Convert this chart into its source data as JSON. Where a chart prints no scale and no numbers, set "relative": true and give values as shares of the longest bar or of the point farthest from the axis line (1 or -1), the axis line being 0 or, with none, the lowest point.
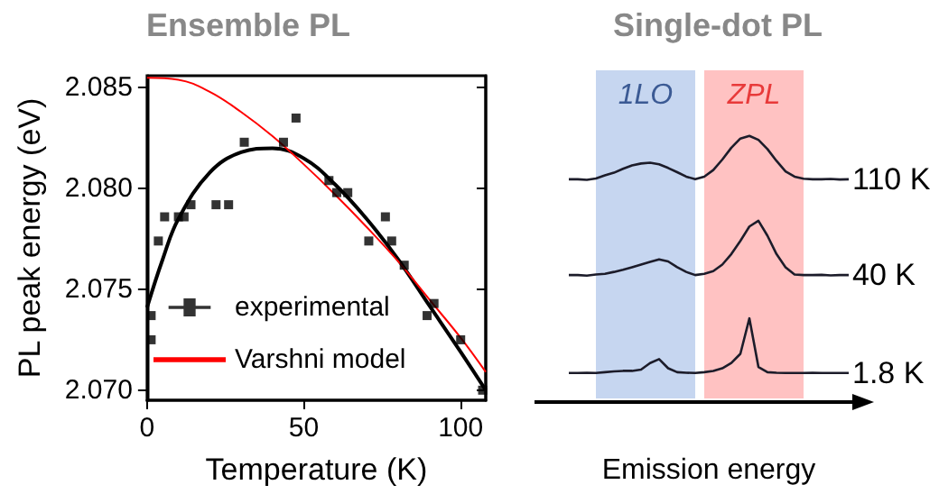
{
  "chart_data": [
    {
      "type": "scatter",
      "title": "Ensemble PL",
      "xlabel": "Temperature (K)",
      "ylabel": "PL peak energy (eV)",
      "xlim": [
        0,
        108
      ],
      "xticks": [
        0,
        50,
        100
      ],
      "ylim": [
        2.0695,
        2.0856
      ],
      "yticks": [
        {
          "value": 2.07,
          "label": "2.070"
        },
        {
          "value": 2.075,
          "label": "2.075"
        },
        {
          "value": 2.08,
          "label": "2.080"
        },
        {
          "value": 2.085,
          "label": "2.085"
        }
      ],
      "legend": "bottom left",
      "series": [
        {
          "name": "experimental",
          "type": "scatter",
          "marker": "square",
          "color": "#000000",
          "x": [
            1.3,
            1.3,
            3.6,
            5.6,
            10,
            11.8,
            14,
            22,
            26,
            31,
            43.5,
            47.5,
            58,
            60.5,
            64,
            70.7,
            76,
            78,
            82,
            89.3,
            91.5,
            100,
            107
          ],
          "values": [
            2.0725,
            2.0737,
            2.0774,
            2.0786,
            2.0786,
            2.0786,
            2.0792,
            2.0792,
            2.0792,
            2.0823,
            2.0823,
            2.0835,
            2.0804,
            2.0798,
            2.0798,
            2.0774,
            2.0786,
            2.0774,
            2.0762,
            2.0737,
            2.0743,
            2.0725,
            2.07
          ]
        },
        {
          "type": "line",
          "marker": "none",
          "color": "#000000",
          "x": [
            0,
            5,
            10,
            20,
            30,
            40,
            50,
            60,
            70,
            80,
            90,
            100,
            108
          ],
          "values": [
            2.0741,
            2.0765,
            2.0785,
            2.0808,
            2.0818,
            2.082,
            2.0815,
            2.0802,
            2.0785,
            2.0765,
            2.0742,
            2.0719,
            2.07
          ]
        },
        {
          "name": "Varshni model",
          "type": "line",
          "marker": "none",
          "color": "#ff0000",
          "x": [
            0,
            10,
            20,
            30,
            40,
            50,
            60,
            70,
            80,
            90,
            100,
            108
          ],
          "values": [
            2.0855,
            2.0854,
            2.0848,
            2.0838,
            2.0826,
            2.0812,
            2.0797,
            2.0781,
            2.0764,
            2.0745,
            2.0726,
            2.0709
          ]
        }
      ]
    },
    {
      "type": "line",
      "title": "Single-dot PL",
      "xlabel": "Emission energy",
      "relative": true,
      "marker": "none",
      "categories": [
        null,
        null,
        null,
        null,
        null,
        null,
        null,
        null,
        null,
        null,
        null,
        null,
        null,
        null,
        null,
        null,
        null,
        null,
        null,
        null,
        null,
        null,
        null,
        null,
        null,
        null,
        null,
        null,
        null,
        null,
        null,
        null
      ],
      "annotations": [
        "1LO",
        "ZPL"
      ],
      "series": [
        {
          "name": "110 K",
          "color": "#1c1c2a",
          "values": [
            0.835,
            0.835,
            0.833,
            0.838,
            0.85,
            0.86,
            0.875,
            0.888,
            0.895,
            0.898,
            0.892,
            0.878,
            0.862,
            0.845,
            0.835,
            0.845,
            0.87,
            0.91,
            0.955,
            0.99,
            1.0,
            0.985,
            0.95,
            0.905,
            0.865,
            0.845,
            0.837,
            0.835,
            0.835,
            0.836,
            0.834,
            0.835
          ]
        },
        {
          "name": "40 K",
          "color": "#1c1c2a",
          "values": [
            0.47,
            0.47,
            0.468,
            0.472,
            0.475,
            0.482,
            0.49,
            0.5,
            0.51,
            0.52,
            0.53,
            0.522,
            0.5,
            0.482,
            0.47,
            0.475,
            0.485,
            0.51,
            0.55,
            0.6,
            0.655,
            0.677,
            0.62,
            0.55,
            0.5,
            0.472,
            0.47,
            0.47,
            0.471,
            0.469,
            0.47,
            0.47
          ]
        },
        {
          "name": "1.8 K",
          "color": "#1c1c2a",
          "values": [
            0.097,
            0.097,
            0.098,
            0.097,
            0.1,
            0.103,
            0.105,
            0.105,
            0.11,
            0.135,
            0.15,
            0.115,
            0.1,
            0.098,
            0.097,
            0.1,
            0.105,
            0.115,
            0.135,
            0.17,
            0.305,
            0.12,
            0.1,
            0.098,
            0.097,
            0.097,
            0.097,
            0.098,
            0.097,
            0.097,
            0.097,
            0.097
          ]
        }
      ]
    }
  ]
}
